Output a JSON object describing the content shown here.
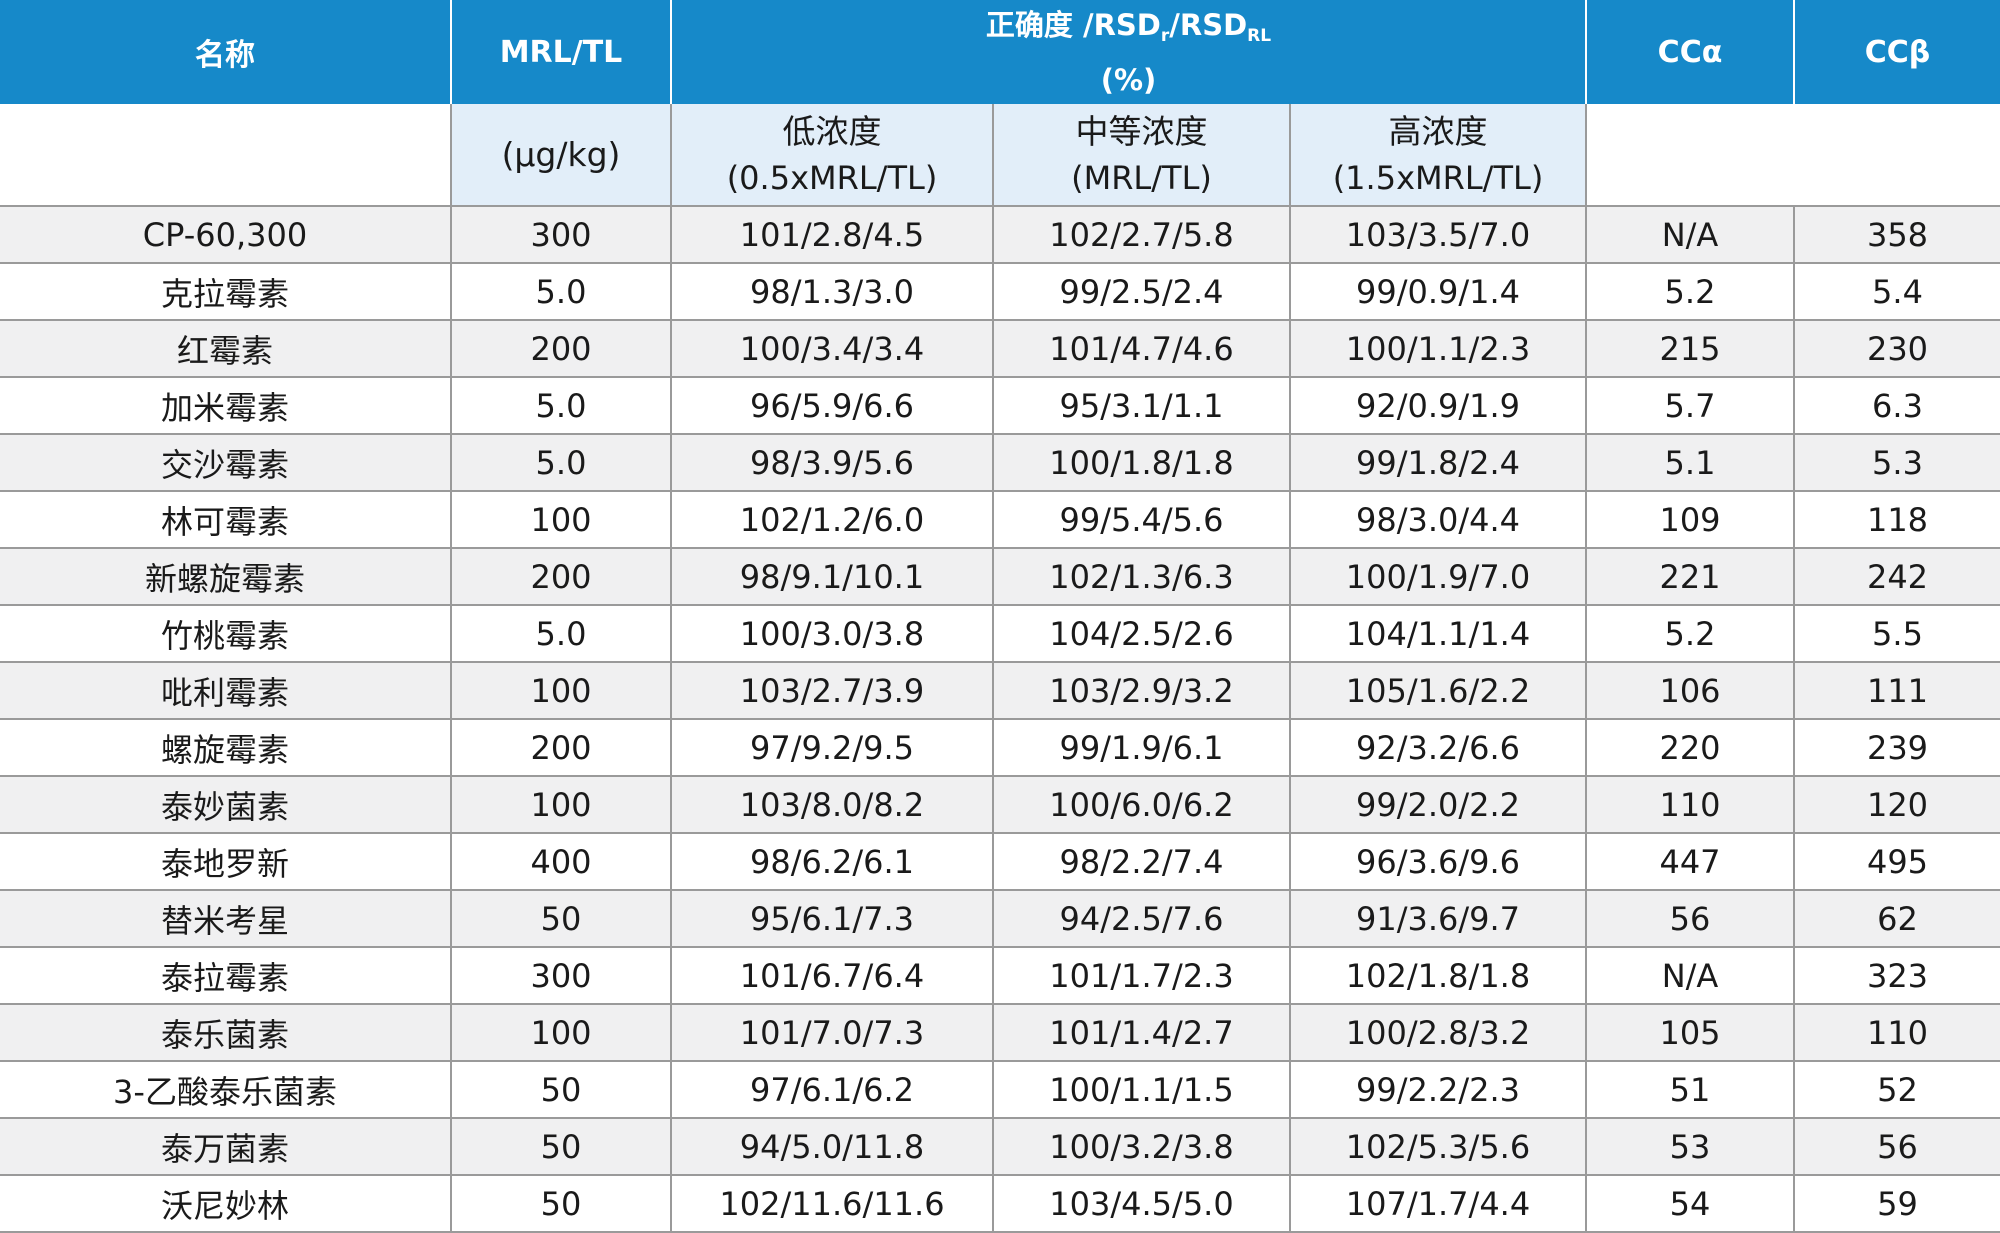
{
  "header": {
    "name": "名称",
    "mrl": "MRL/TL",
    "accuracy_main": "正确度 /RSD",
    "accuracy_sub_r": "r",
    "accuracy_mid": "/RSD",
    "accuracy_sub_rl": "RL",
    "accuracy_unit": "(%)",
    "cc_alpha": "CCα",
    "cc_beta": "CCβ",
    "mrl_unit": "(µg/kg)",
    "low_label": "低浓度",
    "low_sub": "(0.5xMRL/TL)",
    "mid_label": "中等浓度",
    "mid_sub": "(MRL/TL)",
    "high_label": "高浓度",
    "high_sub": "(1.5xMRL/TL)"
  },
  "rows": [
    {
      "name": "CP-60,300",
      "mrl": "300",
      "low": "101/2.8/4.5",
      "mid": "102/2.7/5.8",
      "high": "103/3.5/7.0",
      "cca": "N/A",
      "ccb": "358"
    },
    {
      "name": "克拉霉素",
      "mrl": "5.0",
      "low": "98/1.3/3.0",
      "mid": "99/2.5/2.4",
      "high": "99/0.9/1.4",
      "cca": "5.2",
      "ccb": "5.4"
    },
    {
      "name": "红霉素",
      "mrl": "200",
      "low": "100/3.4/3.4",
      "mid": "101/4.7/4.6",
      "high": "100/1.1/2.3",
      "cca": "215",
      "ccb": "230"
    },
    {
      "name": "加米霉素",
      "mrl": "5.0",
      "low": "96/5.9/6.6",
      "mid": "95/3.1/1.1",
      "high": "92/0.9/1.9",
      "cca": "5.7",
      "ccb": "6.3"
    },
    {
      "name": "交沙霉素",
      "mrl": "5.0",
      "low": "98/3.9/5.6",
      "mid": "100/1.8/1.8",
      "high": "99/1.8/2.4",
      "cca": "5.1",
      "ccb": "5.3"
    },
    {
      "name": "林可霉素",
      "mrl": "100",
      "low": "102/1.2/6.0",
      "mid": "99/5.4/5.6",
      "high": "98/3.0/4.4",
      "cca": "109",
      "ccb": "118"
    },
    {
      "name": "新螺旋霉素",
      "mrl": "200",
      "low": "98/9.1/10.1",
      "mid": "102/1.3/6.3",
      "high": "100/1.9/7.0",
      "cca": "221",
      "ccb": "242"
    },
    {
      "name": "竹桃霉素",
      "mrl": "5.0",
      "low": "100/3.0/3.8",
      "mid": "104/2.5/2.6",
      "high": "104/1.1/1.4",
      "cca": "5.2",
      "ccb": "5.5"
    },
    {
      "name": "吡利霉素",
      "mrl": "100",
      "low": "103/2.7/3.9",
      "mid": "103/2.9/3.2",
      "high": "105/1.6/2.2",
      "cca": "106",
      "ccb": "111"
    },
    {
      "name": "螺旋霉素",
      "mrl": "200",
      "low": "97/9.2/9.5",
      "mid": "99/1.9/6.1",
      "high": "92/3.2/6.6",
      "cca": "220",
      "ccb": "239"
    },
    {
      "name": "泰妙菌素",
      "mrl": "100",
      "low": "103/8.0/8.2",
      "mid": "100/6.0/6.2",
      "high": "99/2.0/2.2",
      "cca": "110",
      "ccb": "120"
    },
    {
      "name": "泰地罗新",
      "mrl": "400",
      "low": "98/6.2/6.1",
      "mid": "98/2.2/7.4",
      "high": "96/3.6/9.6",
      "cca": "447",
      "ccb": "495"
    },
    {
      "name": "替米考星",
      "mrl": "50",
      "low": "95/6.1/7.3",
      "mid": "94/2.5/7.6",
      "high": "91/3.6/9.7",
      "cca": "56",
      "ccb": "62"
    },
    {
      "name": "泰拉霉素",
      "mrl": "300",
      "low": "101/6.7/6.4",
      "mid": "101/1.7/2.3",
      "high": "102/1.8/1.8",
      "cca": "N/A",
      "ccb": "323"
    },
    {
      "name": "泰乐菌素",
      "mrl": "100",
      "low": "101/7.0/7.3",
      "mid": "101/1.4/2.7",
      "high": "100/2.8/3.2",
      "cca": "105",
      "ccb": "110"
    },
    {
      "name": "3-乙酸泰乐菌素",
      "mrl": "50",
      "low": "97/6.1/6.2",
      "mid": "100/1.1/1.5",
      "high": "99/2.2/2.3",
      "cca": "51",
      "ccb": "52"
    },
    {
      "name": "泰万菌素",
      "mrl": "50",
      "low": "94/5.0/11.8",
      "mid": "100/3.2/3.8",
      "high": "102/5.3/5.6",
      "cca": "53",
      "ccb": "56"
    },
    {
      "name": "沃尼妙林",
      "mrl": "50",
      "low": "102/11.6/11.6",
      "mid": "103/4.5/5.0",
      "high": "107/1.7/4.4",
      "cca": "54",
      "ccb": "59"
    }
  ]
}
